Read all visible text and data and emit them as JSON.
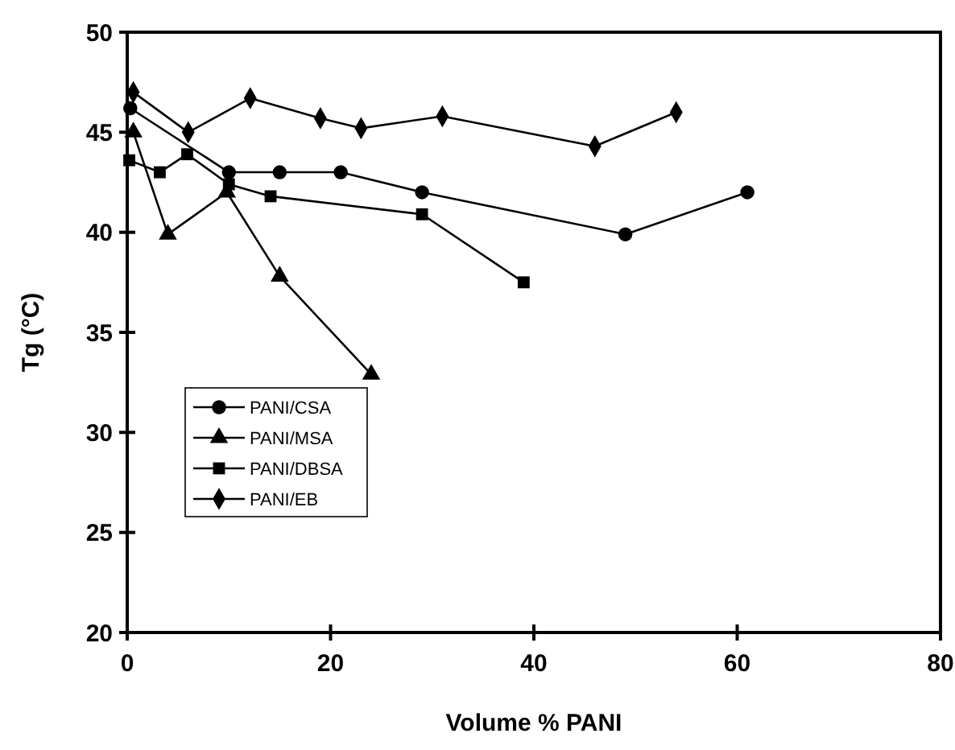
{
  "chart_data": {
    "type": "line",
    "xlabel": "Volume % PANI",
    "ylabel": "Tg (°C)",
    "xlim": [
      0,
      80
    ],
    "xticks": [
      0,
      20,
      40,
      60,
      80
    ],
    "ylim": [
      20,
      50
    ],
    "yticks": [
      20,
      25,
      30,
      35,
      40,
      45,
      50
    ],
    "grid": false,
    "legend": "left",
    "line_style": "solid",
    "series": [
      {
        "name": "PANI/CSA",
        "color": "#000000",
        "marker": "circle",
        "x": [
          0.3,
          10,
          15,
          21,
          29,
          49,
          61
        ],
        "values": [
          46.2,
          43,
          43,
          43,
          42,
          39.9,
          42
        ]
      },
      {
        "name": "PANI/MSA",
        "color": "#000000",
        "marker": "triangle",
        "x": [
          0.6,
          4,
          9.8,
          15,
          24
        ],
        "values": [
          45,
          39.9,
          42,
          37.8,
          32.9
        ]
      },
      {
        "name": "PANI/DBSA",
        "color": "#000000",
        "marker": "square",
        "x": [
          0.2,
          3.2,
          5.9,
          10,
          14.1,
          29,
          39
        ],
        "values": [
          43.6,
          43,
          43.9,
          42.4,
          41.8,
          40.9,
          37.5
        ]
      },
      {
        "name": "PANI/EB",
        "color": "#000000",
        "marker": "diamond",
        "x": [
          0.6,
          6,
          12.1,
          19,
          23,
          31,
          46,
          54
        ],
        "values": [
          47,
          45,
          46.7,
          45.7,
          45.2,
          45.8,
          44.3,
          46
        ]
      }
    ]
  }
}
